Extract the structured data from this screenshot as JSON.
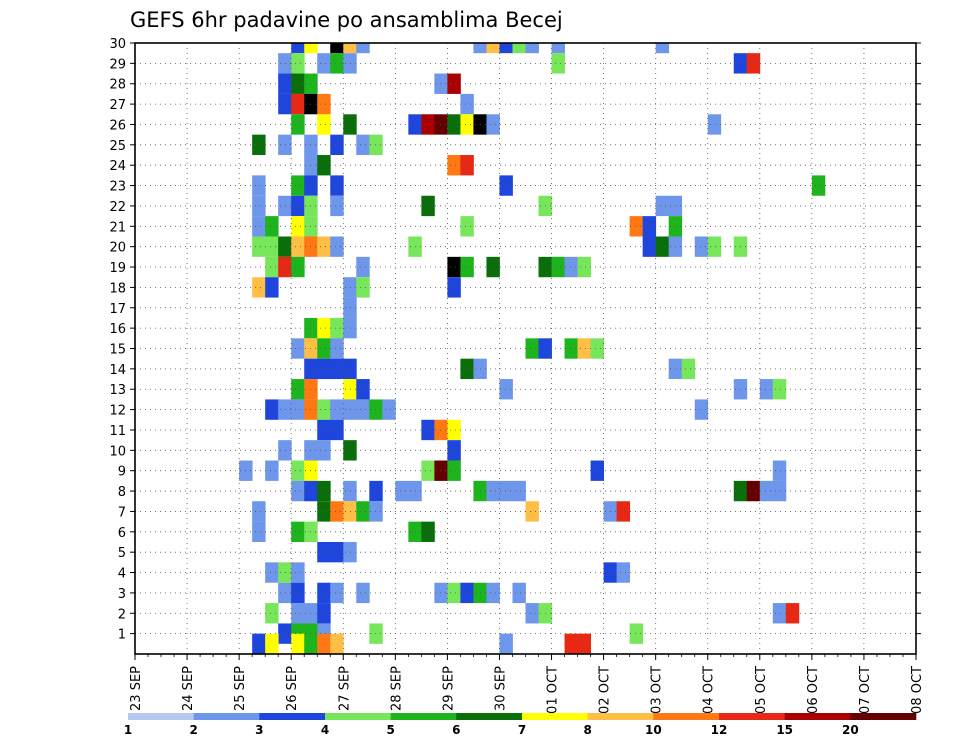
{
  "chart_data": {
    "type": "heatmap",
    "title": "GEFS 6hr padavine po ansamblima Becej",
    "xlabel": "",
    "ylabel": "",
    "x_tick_labels": [
      "23 SEP",
      "24 SEP",
      "25 SEP",
      "26 SEP",
      "27 SEP",
      "28 SEP",
      "29 SEP",
      "30 SEP",
      "01 OCT",
      "02 OCT",
      "03 OCT",
      "04 OCT",
      "05 OCT",
      "06 OCT",
      "07 OCT",
      "08 OCT"
    ],
    "y_tick_labels": [
      "1",
      "2",
      "3",
      "4",
      "5",
      "6",
      "7",
      "8",
      "9",
      "10",
      "11",
      "12",
      "13",
      "14",
      "15",
      "16",
      "17",
      "18",
      "19",
      "20",
      "21",
      "22",
      "23",
      "24",
      "25",
      "26",
      "27",
      "28",
      "29",
      "30"
    ],
    "x_range_days": [
      0,
      15
    ],
    "y_range": [
      0,
      30
    ],
    "steps_per_day": 4,
    "grid": true,
    "colorbar": {
      "labels": [
        "1",
        "2",
        "3",
        "4",
        "5",
        "6",
        "7",
        "8",
        "10",
        "12",
        "15",
        "20"
      ],
      "colors": [
        "#b4c8f0",
        "#6e96eb",
        "#1e46dc",
        "#78e65a",
        "#1eb41e",
        "#0a6e0a",
        "#ffff00",
        "#ffbe46",
        "#ff7814",
        "#e62814",
        "#aa0000",
        "#640000"
      ]
    },
    "cells": [
      [
        30,
        12,
        2
      ],
      [
        30,
        13,
        6
      ],
      [
        30,
        15,
        12
      ],
      [
        30,
        16,
        7
      ],
      [
        30,
        17,
        1
      ],
      [
        30,
        26,
        1
      ],
      [
        30,
        27,
        7
      ],
      [
        30,
        28,
        2
      ],
      [
        30,
        29,
        3
      ],
      [
        30,
        30,
        1
      ],
      [
        30,
        32,
        1
      ],
      [
        30,
        40,
        1
      ],
      [
        29,
        11,
        1
      ],
      [
        29,
        12,
        3
      ],
      [
        29,
        14,
        1
      ],
      [
        29,
        15,
        4
      ],
      [
        29,
        16,
        1
      ],
      [
        29,
        32,
        3
      ],
      [
        29,
        46,
        2
      ],
      [
        29,
        47,
        9
      ],
      [
        28,
        11,
        2
      ],
      [
        28,
        12,
        5
      ],
      [
        28,
        13,
        4
      ],
      [
        28,
        23,
        1
      ],
      [
        28,
        24,
        10
      ],
      [
        27,
        11,
        2
      ],
      [
        27,
        12,
        9
      ],
      [
        27,
        13,
        12
      ],
      [
        27,
        14,
        8
      ],
      [
        27,
        25,
        1
      ],
      [
        26,
        12,
        4
      ],
      [
        26,
        14,
        6
      ],
      [
        26,
        16,
        5
      ],
      [
        26,
        21,
        2
      ],
      [
        26,
        22,
        10
      ],
      [
        26,
        23,
        11
      ],
      [
        26,
        24,
        5
      ],
      [
        26,
        25,
        6
      ],
      [
        26,
        26,
        12
      ],
      [
        26,
        27,
        1
      ],
      [
        26,
        44,
        1
      ],
      [
        25,
        9,
        5
      ],
      [
        25,
        11,
        1
      ],
      [
        25,
        13,
        1
      ],
      [
        25,
        15,
        2
      ],
      [
        25,
        17,
        1
      ],
      [
        25,
        18,
        3
      ],
      [
        24,
        13,
        1
      ],
      [
        24,
        14,
        5
      ],
      [
        24,
        24,
        8
      ],
      [
        24,
        25,
        9
      ],
      [
        23,
        9,
        1
      ],
      [
        23,
        12,
        4
      ],
      [
        23,
        13,
        2
      ],
      [
        23,
        15,
        2
      ],
      [
        23,
        28,
        2
      ],
      [
        23,
        52,
        4
      ],
      [
        22,
        9,
        1
      ],
      [
        22,
        11,
        1
      ],
      [
        22,
        12,
        2
      ],
      [
        22,
        13,
        3
      ],
      [
        22,
        15,
        1
      ],
      [
        22,
        22,
        5
      ],
      [
        22,
        31,
        3
      ],
      [
        22,
        40,
        1
      ],
      [
        22,
        41,
        1
      ],
      [
        21,
        9,
        1
      ],
      [
        21,
        10,
        4
      ],
      [
        21,
        12,
        6
      ],
      [
        21,
        13,
        3
      ],
      [
        21,
        25,
        3
      ],
      [
        21,
        38,
        8
      ],
      [
        21,
        39,
        2
      ],
      [
        21,
        41,
        4
      ],
      [
        20,
        9,
        3
      ],
      [
        20,
        10,
        3
      ],
      [
        20,
        11,
        5
      ],
      [
        20,
        12,
        7
      ],
      [
        20,
        13,
        8
      ],
      [
        20,
        14,
        7
      ],
      [
        20,
        15,
        1
      ],
      [
        20,
        21,
        3
      ],
      [
        20,
        39,
        2
      ],
      [
        20,
        40,
        5
      ],
      [
        20,
        41,
        1
      ],
      [
        20,
        43,
        1
      ],
      [
        20,
        44,
        3
      ],
      [
        20,
        46,
        3
      ],
      [
        19,
        10,
        3
      ],
      [
        19,
        11,
        9
      ],
      [
        19,
        12,
        4
      ],
      [
        19,
        17,
        1
      ],
      [
        19,
        24,
        12
      ],
      [
        19,
        25,
        4
      ],
      [
        19,
        27,
        5
      ],
      [
        19,
        31,
        5
      ],
      [
        19,
        32,
        4
      ],
      [
        19,
        33,
        1
      ],
      [
        19,
        34,
        3
      ],
      [
        18,
        9,
        7
      ],
      [
        18,
        10,
        2
      ],
      [
        18,
        16,
        1
      ],
      [
        18,
        17,
        3
      ],
      [
        18,
        24,
        2
      ],
      [
        17,
        16,
        1
      ],
      [
        16,
        13,
        4
      ],
      [
        16,
        14,
        6
      ],
      [
        16,
        15,
        3
      ],
      [
        16,
        16,
        1
      ],
      [
        15,
        12,
        1
      ],
      [
        15,
        13,
        7
      ],
      [
        15,
        14,
        4
      ],
      [
        15,
        15,
        1
      ],
      [
        15,
        30,
        4
      ],
      [
        15,
        31,
        2
      ],
      [
        15,
        33,
        4
      ],
      [
        15,
        34,
        7
      ],
      [
        15,
        35,
        3
      ],
      [
        14,
        13,
        2
      ],
      [
        14,
        14,
        2
      ],
      [
        14,
        15,
        2
      ],
      [
        14,
        16,
        2
      ],
      [
        14,
        25,
        5
      ],
      [
        14,
        26,
        1
      ],
      [
        14,
        41,
        1
      ],
      [
        14,
        42,
        3
      ],
      [
        13,
        12,
        4
      ],
      [
        13,
        13,
        8
      ],
      [
        13,
        16,
        6
      ],
      [
        13,
        17,
        2
      ],
      [
        13,
        28,
        1
      ],
      [
        13,
        46,
        1
      ],
      [
        13,
        48,
        1
      ],
      [
        13,
        49,
        3
      ],
      [
        12,
        10,
        2
      ],
      [
        12,
        11,
        1
      ],
      [
        12,
        12,
        1
      ],
      [
        12,
        13,
        8
      ],
      [
        12,
        14,
        3
      ],
      [
        12,
        15,
        1
      ],
      [
        12,
        16,
        1
      ],
      [
        12,
        17,
        1
      ],
      [
        12,
        18,
        4
      ],
      [
        12,
        19,
        1
      ],
      [
        12,
        43,
        1
      ],
      [
        11,
        14,
        2
      ],
      [
        11,
        15,
        2
      ],
      [
        11,
        22,
        2
      ],
      [
        11,
        23,
        8
      ],
      [
        11,
        24,
        6
      ],
      [
        10,
        11,
        1
      ],
      [
        10,
        13,
        1
      ],
      [
        10,
        14,
        1
      ],
      [
        10,
        16,
        5
      ],
      [
        10,
        24,
        2
      ],
      [
        9,
        8,
        1
      ],
      [
        9,
        10,
        1
      ],
      [
        9,
        12,
        3
      ],
      [
        9,
        13,
        6
      ],
      [
        9,
        22,
        3
      ],
      [
        9,
        23,
        11
      ],
      [
        9,
        24,
        4
      ],
      [
        9,
        35,
        2
      ],
      [
        9,
        49,
        1
      ],
      [
        8,
        12,
        1
      ],
      [
        8,
        13,
        2
      ],
      [
        8,
        14,
        5
      ],
      [
        8,
        16,
        1
      ],
      [
        8,
        18,
        2
      ],
      [
        8,
        20,
        1
      ],
      [
        8,
        21,
        1
      ],
      [
        8,
        26,
        4
      ],
      [
        8,
        27,
        1
      ],
      [
        8,
        28,
        1
      ],
      [
        8,
        29,
        1
      ],
      [
        8,
        46,
        5
      ],
      [
        8,
        47,
        11
      ],
      [
        8,
        48,
        1
      ],
      [
        8,
        49,
        1
      ],
      [
        7,
        9,
        1
      ],
      [
        7,
        14,
        5
      ],
      [
        7,
        15,
        8
      ],
      [
        7,
        16,
        7
      ],
      [
        7,
        17,
        4
      ],
      [
        7,
        18,
        1
      ],
      [
        7,
        30,
        7
      ],
      [
        7,
        36,
        1
      ],
      [
        7,
        37,
        9
      ],
      [
        6,
        9,
        1
      ],
      [
        6,
        12,
        4
      ],
      [
        6,
        13,
        3
      ],
      [
        6,
        21,
        4
      ],
      [
        6,
        22,
        5
      ],
      [
        5,
        14,
        2
      ],
      [
        5,
        15,
        2
      ],
      [
        5,
        16,
        1
      ],
      [
        4,
        10,
        1
      ],
      [
        4,
        11,
        3
      ],
      [
        4,
        12,
        1
      ],
      [
        4,
        36,
        2
      ],
      [
        4,
        37,
        1
      ],
      [
        3,
        11,
        1
      ],
      [
        3,
        12,
        2
      ],
      [
        3,
        14,
        2
      ],
      [
        3,
        15,
        1
      ],
      [
        3,
        17,
        1
      ],
      [
        3,
        23,
        1
      ],
      [
        3,
        24,
        3
      ],
      [
        3,
        25,
        2
      ],
      [
        3,
        26,
        4
      ],
      [
        3,
        27,
        1
      ],
      [
        3,
        29,
        1
      ],
      [
        2,
        10,
        3
      ],
      [
        2,
        12,
        1
      ],
      [
        2,
        13,
        1
      ],
      [
        2,
        14,
        2
      ],
      [
        2,
        30,
        1
      ],
      [
        2,
        31,
        3
      ],
      [
        2,
        49,
        1
      ],
      [
        2,
        50,
        9
      ],
      [
        1,
        11,
        2
      ],
      [
        1,
        12,
        4
      ],
      [
        1,
        13,
        4
      ],
      [
        1,
        14,
        1
      ],
      [
        1,
        18,
        3
      ],
      [
        1,
        38,
        3
      ],
      [
        0.5,
        9,
        2
      ],
      [
        0.5,
        10,
        6
      ],
      [
        0.5,
        12,
        6
      ],
      [
        0.5,
        13,
        4
      ],
      [
        0.5,
        14,
        8
      ],
      [
        0.5,
        15,
        7
      ],
      [
        0.5,
        28,
        1
      ],
      [
        0.5,
        33,
        9
      ],
      [
        0.5,
        34,
        9
      ]
    ]
  }
}
